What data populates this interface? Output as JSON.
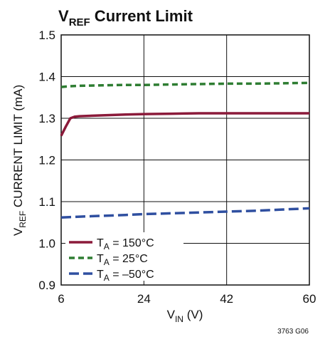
{
  "chart_data": {
    "type": "line",
    "title": {
      "main": "V",
      "sub": "REF",
      "rest": " Current Limit"
    },
    "xlabel": {
      "main": "V",
      "sub": "IN",
      "rest": " (V)"
    },
    "ylabel": {
      "main": "V",
      "sub": "REF",
      "rest": " CURRENT LIMIT (mA)"
    },
    "xlim": [
      6,
      60
    ],
    "ylim": [
      0.9,
      1.5
    ],
    "x_ticks": [
      "6",
      "24",
      "42",
      "60"
    ],
    "y_ticks": [
      "0.9",
      "1.0",
      "1.1",
      "1.2",
      "1.3",
      "1.4",
      "1.5"
    ],
    "grid": true,
    "legend_position": "bottom-left",
    "series": [
      {
        "name": {
          "main": "T",
          "sub": "A",
          "rest": " = 150°C"
        },
        "color": "#8b1a3a",
        "dash": "solid",
        "x": [
          6,
          7,
          8,
          9,
          10,
          15,
          20,
          24,
          30,
          36,
          42,
          48,
          54,
          60
        ],
        "y": [
          1.258,
          1.28,
          1.3,
          1.304,
          1.305,
          1.307,
          1.309,
          1.31,
          1.311,
          1.312,
          1.312,
          1.312,
          1.312,
          1.312
        ]
      },
      {
        "name": {
          "main": "T",
          "sub": "A",
          "rest": " = 25°C"
        },
        "color": "#2e7d32",
        "dash": "dashed",
        "x": [
          6,
          8,
          10,
          15,
          20,
          24,
          30,
          36,
          42,
          48,
          54,
          60
        ],
        "y": [
          1.375,
          1.377,
          1.378,
          1.379,
          1.38,
          1.38,
          1.381,
          1.382,
          1.383,
          1.383,
          1.384,
          1.385
        ]
      },
      {
        "name": {
          "main": "T",
          "sub": "A",
          "rest": " = –50°C"
        },
        "color": "#2f4fa0",
        "dash": "longdash",
        "x": [
          6,
          10,
          15,
          20,
          24,
          30,
          36,
          42,
          48,
          54,
          60
        ],
        "y": [
          1.062,
          1.064,
          1.066,
          1.068,
          1.07,
          1.072,
          1.074,
          1.076,
          1.078,
          1.081,
          1.084
        ]
      }
    ],
    "footnote": "3763 G06"
  }
}
